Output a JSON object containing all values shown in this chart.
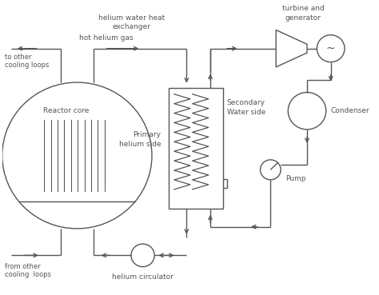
{
  "bg_color": "#ffffff",
  "line_color": "#555555",
  "labels": {
    "reactor_core": "Reactor core",
    "hot_helium": "hot helium gas",
    "to_cooling": "to other\ncooling loops",
    "from_cooling": "from other\ncooling  loops",
    "heat_exchanger": "helium water heat\nexchanger",
    "primary_side": "Primary\nhelium side",
    "secondary_side": "Secondary\nWater side",
    "turbine_gen": "turbine and\ngenerator",
    "condenser": "Condenser",
    "pump": "Pump",
    "helium_circ": "helium circulator"
  },
  "figsize": [
    4.74,
    3.69
  ],
  "dpi": 100
}
